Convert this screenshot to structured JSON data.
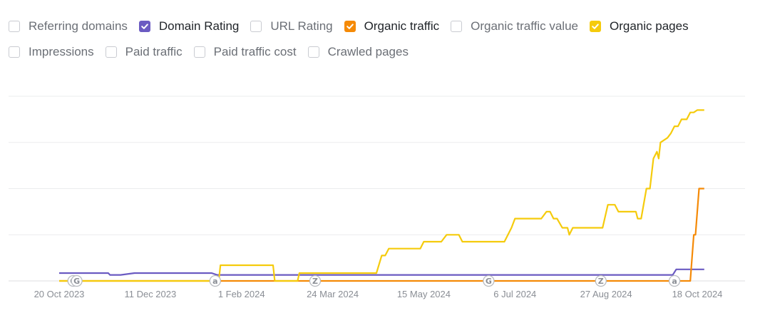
{
  "legend": {
    "rows": [
      [
        {
          "label": "Referring domains",
          "checked": false,
          "color": ""
        },
        {
          "label": "Domain Rating",
          "checked": true,
          "color": "#6b5bc2"
        },
        {
          "label": "URL Rating",
          "checked": false,
          "color": ""
        },
        {
          "label": "Organic traffic",
          "checked": true,
          "color": "#f58a07"
        },
        {
          "label": "Organic traffic value",
          "checked": false,
          "color": ""
        },
        {
          "label": "Organic pages",
          "checked": true,
          "color": "#f5cb0c"
        }
      ],
      [
        {
          "label": "Impressions",
          "checked": false,
          "color": ""
        },
        {
          "label": "Paid traffic",
          "checked": false,
          "color": ""
        },
        {
          "label": "Paid traffic cost",
          "checked": false,
          "color": ""
        },
        {
          "label": "Crawled pages",
          "checked": false,
          "color": ""
        }
      ]
    ]
  },
  "chart_data": {
    "type": "line",
    "x_start": "2023-10-20",
    "x_end": "2024-10-23",
    "x_ticks": [
      "20 Oct 2023",
      "11 Dec 2023",
      "1 Feb 2024",
      "24 Mar 2024",
      "15 May 2024",
      "6 Jul 2024",
      "27 Aug 2024",
      "18 Oct 2024"
    ],
    "y_gridlines": 5,
    "y_axis_labels_shown": false,
    "ylim": [
      0,
      4
    ],
    "grid": true,
    "legend_position": "top",
    "series": [
      {
        "name": "Domain Rating",
        "color": "#6b5bc2",
        "points": [
          [
            "2023-10-20",
            0.17
          ],
          [
            "2023-11-17",
            0.17
          ],
          [
            "2023-11-18",
            0.13
          ],
          [
            "2023-11-24",
            0.13
          ],
          [
            "2023-12-02",
            0.17
          ],
          [
            "2024-01-15",
            0.17
          ],
          [
            "2024-01-18",
            0.13
          ],
          [
            "2024-10-04",
            0.13
          ],
          [
            "2024-10-06",
            0.25
          ],
          [
            "2024-10-22",
            0.25
          ]
        ]
      },
      {
        "name": "Organic traffic",
        "color": "#f58a07",
        "points": [
          [
            "2023-10-20",
            0
          ],
          [
            "2024-10-14",
            0
          ],
          [
            "2024-10-16",
            1.0
          ],
          [
            "2024-10-17",
            1.0
          ],
          [
            "2024-10-19",
            2.0
          ],
          [
            "2024-10-22",
            2.0
          ]
        ]
      },
      {
        "name": "Organic pages",
        "color": "#f5cb0c",
        "points": [
          [
            "2023-10-20",
            0
          ],
          [
            "2024-01-19",
            0
          ],
          [
            "2024-01-20",
            0.34
          ],
          [
            "2024-02-19",
            0.34
          ],
          [
            "2024-02-20",
            0
          ],
          [
            "2024-03-04",
            0
          ],
          [
            "2024-03-05",
            0.17
          ],
          [
            "2024-04-18",
            0.17
          ],
          [
            "2024-04-21",
            0.55
          ],
          [
            "2024-04-23",
            0.55
          ],
          [
            "2024-04-25",
            0.7
          ],
          [
            "2024-05-13",
            0.7
          ],
          [
            "2024-05-15",
            0.85
          ],
          [
            "2024-05-25",
            0.85
          ],
          [
            "2024-05-28",
            1.0
          ],
          [
            "2024-06-04",
            1.0
          ],
          [
            "2024-06-06",
            0.85
          ],
          [
            "2024-06-30",
            0.85
          ],
          [
            "2024-07-04",
            1.15
          ],
          [
            "2024-07-06",
            1.35
          ],
          [
            "2024-07-21",
            1.35
          ],
          [
            "2024-07-24",
            1.5
          ],
          [
            "2024-07-26",
            1.5
          ],
          [
            "2024-07-28",
            1.35
          ],
          [
            "2024-07-30",
            1.35
          ],
          [
            "2024-08-02",
            1.15
          ],
          [
            "2024-08-05",
            1.15
          ],
          [
            "2024-08-06",
            1.0
          ],
          [
            "2024-08-08",
            1.15
          ],
          [
            "2024-08-25",
            1.15
          ],
          [
            "2024-08-28",
            1.65
          ],
          [
            "2024-09-01",
            1.65
          ],
          [
            "2024-09-03",
            1.5
          ],
          [
            "2024-09-13",
            1.5
          ],
          [
            "2024-09-14",
            1.35
          ],
          [
            "2024-09-16",
            1.35
          ],
          [
            "2024-09-19",
            2.0
          ],
          [
            "2024-09-21",
            2.0
          ],
          [
            "2024-09-23",
            2.65
          ],
          [
            "2024-09-25",
            2.8
          ],
          [
            "2024-09-26",
            2.65
          ],
          [
            "2024-09-27",
            3.0
          ],
          [
            "2024-10-01",
            3.1
          ],
          [
            "2024-10-03",
            3.2
          ],
          [
            "2024-10-05",
            3.35
          ],
          [
            "2024-10-07",
            3.35
          ],
          [
            "2024-10-09",
            3.5
          ],
          [
            "2024-10-12",
            3.5
          ],
          [
            "2024-10-14",
            3.65
          ],
          [
            "2024-10-16",
            3.65
          ],
          [
            "2024-10-18",
            3.7
          ],
          [
            "2024-10-22",
            3.7
          ]
        ]
      }
    ],
    "annotations": [
      {
        "date": "2023-10-28",
        "label": "G"
      },
      {
        "date": "2023-10-30",
        "label": "G"
      },
      {
        "date": "2024-01-17",
        "label": "a"
      },
      {
        "date": "2024-03-14",
        "label": "Z"
      },
      {
        "date": "2024-06-21",
        "label": "G"
      },
      {
        "date": "2024-08-24",
        "label": "Z"
      },
      {
        "date": "2024-10-05",
        "label": "a"
      }
    ]
  }
}
